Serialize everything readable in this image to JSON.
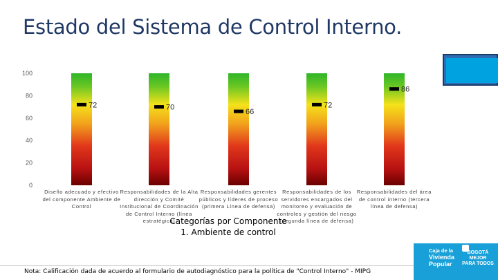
{
  "header": {
    "title": "Estado del Sistema de Control Interno."
  },
  "footer": {
    "note": "Nota: Calificación dada de acuerdo al formulario de autodiagnóstico para la política de \"Control Interno\" - MIPG"
  },
  "logo": {
    "line1": "Caja de la",
    "line2": "Vivienda",
    "line3": "Popular",
    "right": "BOGOTÁ MEJOR PARA TODOS"
  },
  "colors": {
    "title": "#1f3864",
    "bar_top": "#2fb52a",
    "bar_mid": "#f4e21a",
    "bar_low": "#e1371b",
    "bar_bottom": "#6b0000",
    "marker": "#000000"
  },
  "chart_data": {
    "type": "bar",
    "categories": [
      "Diseño adecuado y efectivo del componente Ambiente de Control",
      "Responsabilidades de la Alta dirección y Comité Institucional de Coordinación de Control Interno (línea estratégica)",
      "Responsabilidades gerentes públicos y líderes de proceso (primera Línea de defensa)",
      "Responsabilidades de los servidores encargados del monitoreo y evaluación de controles y gestión del riesgo (segunda línea de defensa)",
      "Responsabilidades del área de control interno (tercera línea de defensa)"
    ],
    "values": [
      72,
      70,
      66,
      72,
      86
    ],
    "value_labels": [
      "72",
      "70",
      "66",
      "72",
      "86"
    ],
    "xlabel_line1": "Categorías por Componente",
    "xlabel_line2": "1. Ambiente de control",
    "ylim": [
      0,
      100
    ],
    "yticks": [
      0,
      20,
      40,
      60,
      80,
      100
    ],
    "ytick_labels": [
      "0",
      "20",
      "40",
      "60",
      "80",
      "100"
    ],
    "grid": false,
    "legend": "none"
  }
}
